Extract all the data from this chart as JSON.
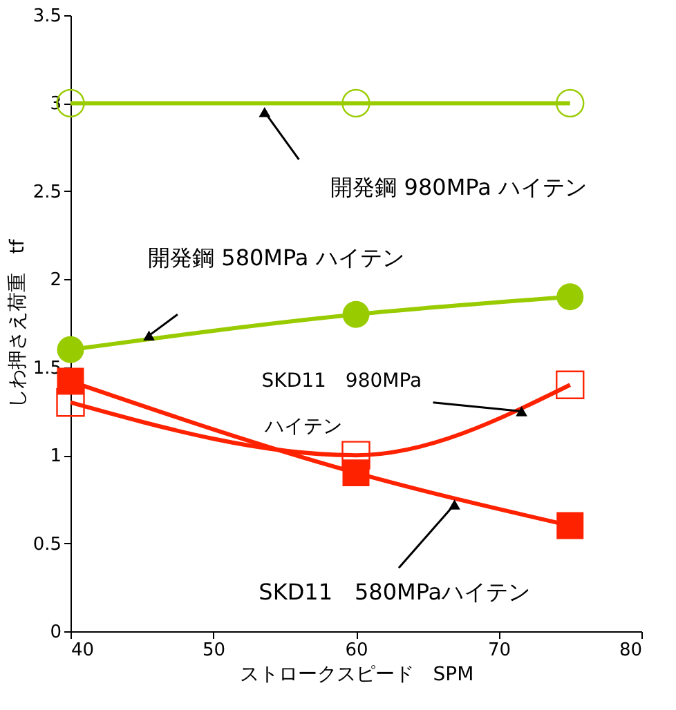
{
  "chart_data": {
    "type": "line",
    "xlabel": "ストロークスピード　SPM",
    "ylabel": "しわ押さえ荷重　tf",
    "x": [
      40,
      60,
      75
    ],
    "xlim": [
      40,
      80
    ],
    "xticks": [
      40,
      50,
      60,
      70,
      80
    ],
    "ylim": [
      0,
      3.5
    ],
    "yticks": [
      0,
      0.5,
      1,
      1.5,
      2,
      2.5,
      3,
      3.5
    ],
    "grid": false,
    "series": [
      {
        "name": "開発鋼 980MPa ハイテン",
        "color": "#99cc00",
        "marker": "circle",
        "values": [
          3.0,
          3.0,
          3.0
        ]
      },
      {
        "name": "開発鋼 580MPa ハイテン",
        "color": "#99cc00",
        "marker": "circle",
        "values": [
          1.6,
          1.8,
          1.9
        ]
      },
      {
        "name": "SKD11　980MPa ハイテン",
        "color": "#ff2200",
        "marker": "square",
        "values": [
          1.3,
          1.0,
          1.4
        ]
      },
      {
        "name": "SKD11　580MPaハイテン",
        "color": "#ff2200",
        "marker": "square",
        "values": [
          1.42,
          0.9,
          0.6
        ]
      }
    ]
  }
}
